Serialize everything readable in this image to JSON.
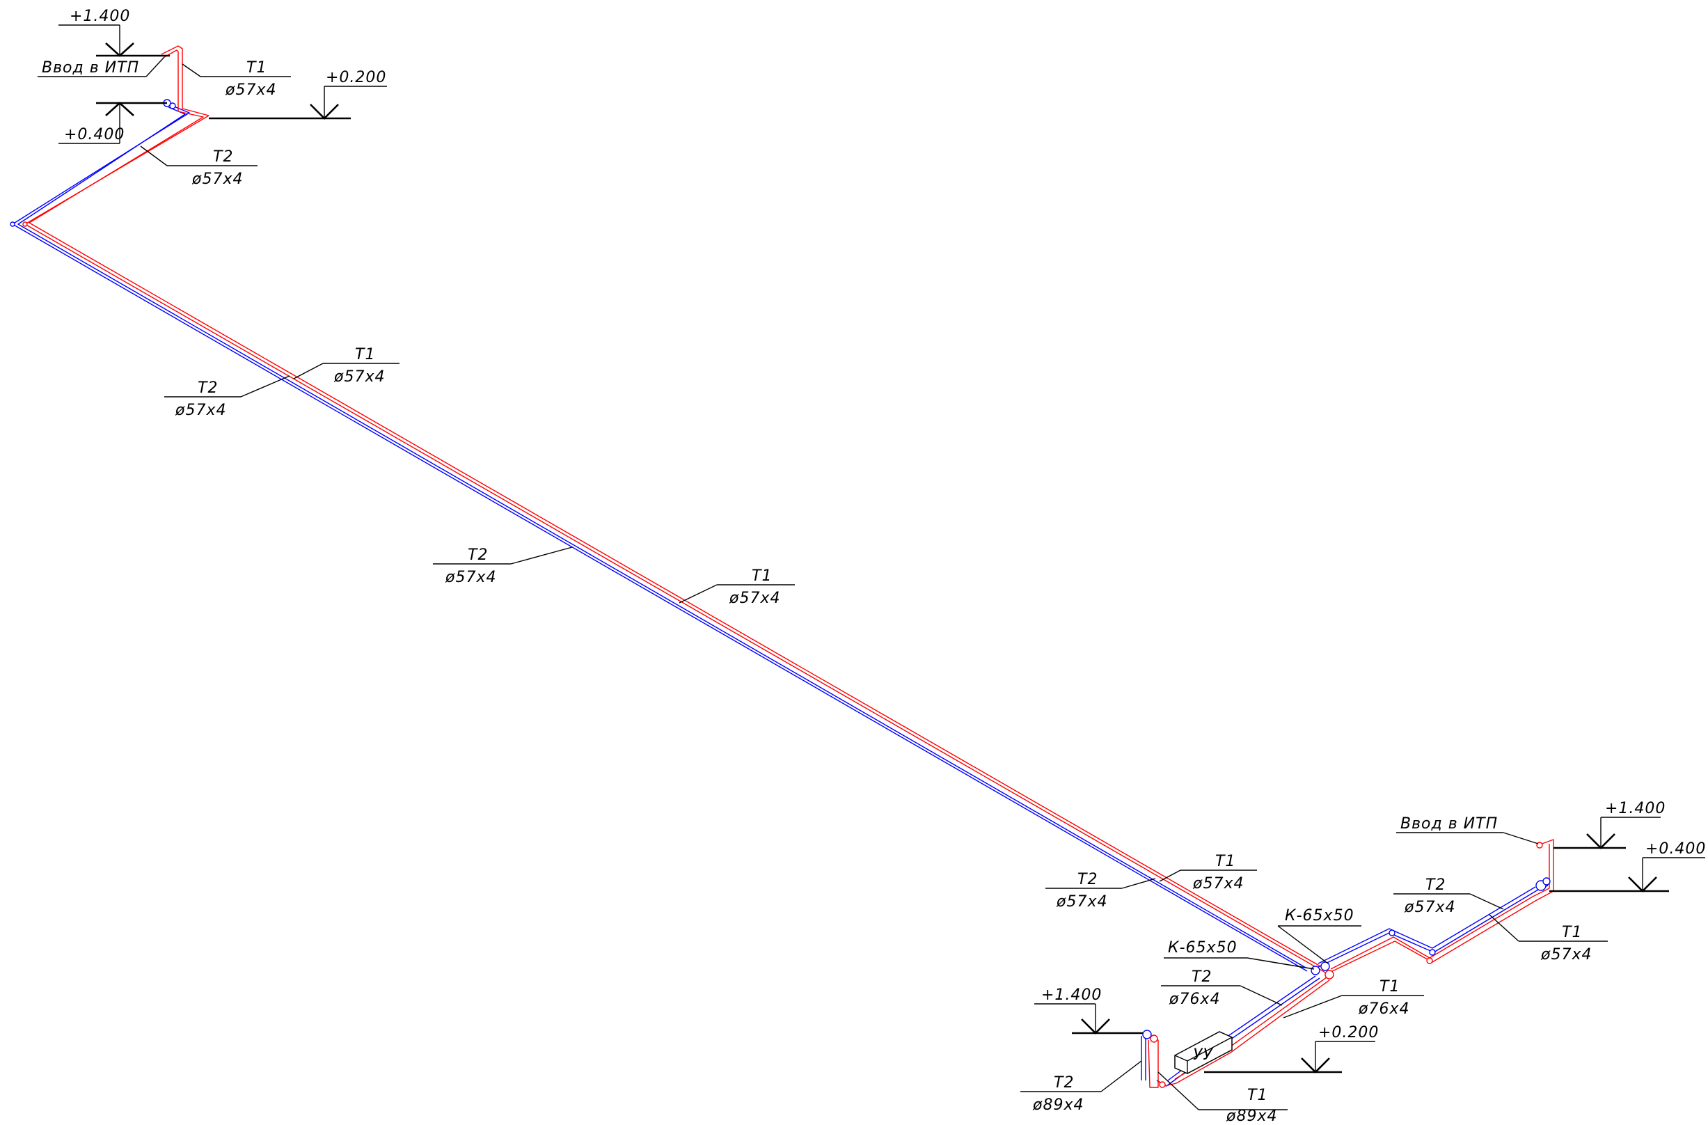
{
  "colors": {
    "supply_pipe": "#ff0000",
    "return_pipe": "#0000ff",
    "annotation": "#000000",
    "background": "#ffffff"
  },
  "elevations": {
    "top_entry": "+1.400",
    "top_return": "+0.400",
    "top_supply": "+0.200",
    "right_entry": "+1.400",
    "right_return": "+0.400",
    "bottom_entry": "+1.400",
    "bottom_supply": "+0.200"
  },
  "labels": {
    "entry_itp_top": "Ввод в ИТП",
    "entry_itp_right": "Ввод в ИТП",
    "node": "УУ"
  },
  "pipes": {
    "top_t1": {
      "name": "Т1",
      "size": "ø57х4"
    },
    "top_t2": {
      "name": "Т2",
      "size": "ø57х4"
    },
    "upper_t2": {
      "name": "Т2",
      "size": "ø57х4"
    },
    "upper_t1": {
      "name": "Т1",
      "size": "ø57х4"
    },
    "mid_t2": {
      "name": "Т2",
      "size": "ø57х4"
    },
    "mid_t1": {
      "name": "Т1",
      "size": "ø57х4"
    },
    "low_t2": {
      "name": "Т2",
      "size": "ø57х4"
    },
    "low_t1": {
      "name": "Т1",
      "size": "ø57х4"
    },
    "right_t2": {
      "name": "Т2",
      "size": "ø57х4"
    },
    "right_t1": {
      "name": "Т1",
      "size": "ø57х4"
    },
    "branch_t2": {
      "name": "Т2",
      "size": "ø76х4"
    },
    "branch_t1": {
      "name": "Т1",
      "size": "ø76х4"
    },
    "riser_t2": {
      "name": "Т2",
      "size": "ø89х4"
    },
    "riser_t1": {
      "name": "Т1",
      "size": "ø89х4"
    }
  },
  "compensators": {
    "left": "К-65х50",
    "right": "К-65х50"
  }
}
